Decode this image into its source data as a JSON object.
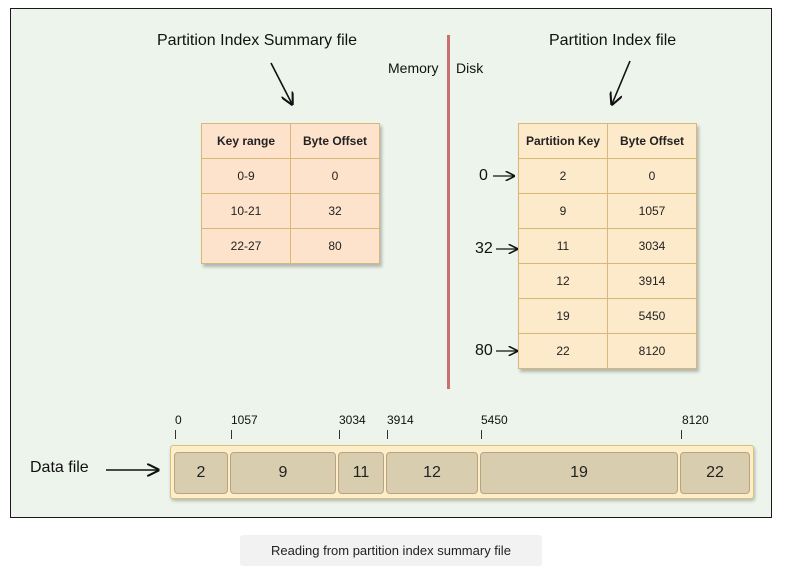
{
  "summary_title": "Partition Index Summary file",
  "index_title": "Partition Index file",
  "memory_label": "Memory",
  "disk_label": "Disk",
  "summary_table": {
    "headers": [
      "Key range",
      "Byte Offset"
    ],
    "rows": [
      [
        "0-9",
        "0"
      ],
      [
        "10-21",
        "32"
      ],
      [
        "22-27",
        "80"
      ]
    ]
  },
  "index_table": {
    "headers": [
      "Partition Key",
      "Byte Offset"
    ],
    "rows": [
      [
        "2",
        "0"
      ],
      [
        "9",
        "1057"
      ],
      [
        "11",
        "3034"
      ],
      [
        "12",
        "3914"
      ],
      [
        "19",
        "5450"
      ],
      [
        "22",
        "8120"
      ]
    ]
  },
  "offset_pointers": [
    "0",
    "32",
    "80"
  ],
  "data_file": {
    "label": "Data file",
    "offsets": [
      "0",
      "1057",
      "3034",
      "3914",
      "5450",
      "8120"
    ],
    "segments": [
      "2",
      "9",
      "11",
      "12",
      "19",
      "22"
    ]
  },
  "caption": "Reading from partition index summary file"
}
